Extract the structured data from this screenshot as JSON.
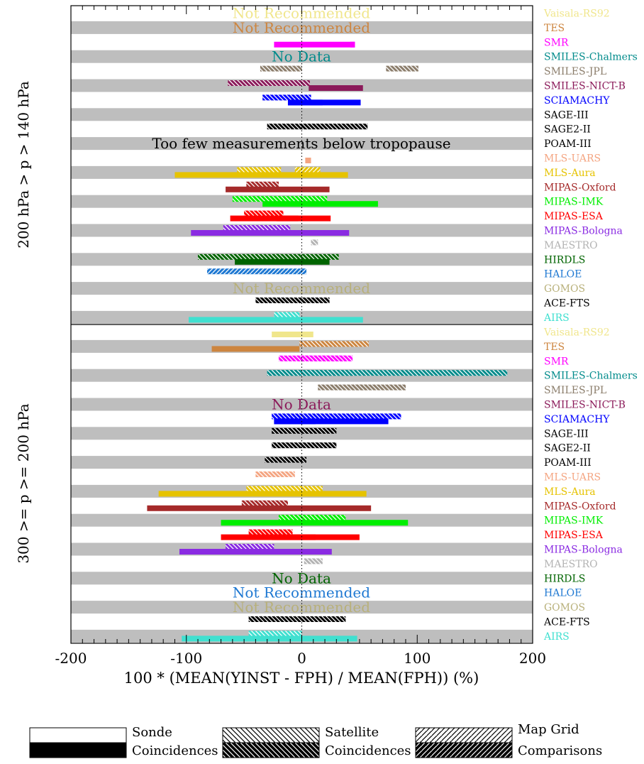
{
  "chart_data": {
    "type": "bar",
    "xlabel": "100 * (MEAN(YINST - FPH) / MEAN(FPH)) (%)",
    "xlim": [
      -200,
      200
    ],
    "x_ticks": [
      "-200",
      "-100",
      "0",
      "100",
      "200"
    ],
    "instruments": [
      {
        "name": "Vaisala-RS92",
        "color": "#f0e68c"
      },
      {
        "name": "TES",
        "color": "#cd853f"
      },
      {
        "name": "SMR",
        "color": "#ff00ff"
      },
      {
        "name": "SMILES-Chalmers",
        "color": "#008b8b"
      },
      {
        "name": "SMILES-JPL",
        "color": "#8b7d6b"
      },
      {
        "name": "SMILES-NICT-B",
        "color": "#8b1a5a"
      },
      {
        "name": "SCIAMACHY",
        "color": "#0000ff"
      },
      {
        "name": "SAGE-III",
        "color": "#000000"
      },
      {
        "name": "SAGE2-II",
        "color": "#000000"
      },
      {
        "name": "POAM-III",
        "color": "#000000"
      },
      {
        "name": "MLS-UARS",
        "color": "#f4a582"
      },
      {
        "name": "MLS-Aura",
        "color": "#e6c300"
      },
      {
        "name": "MIPAS-Oxford",
        "color": "#a52a2a"
      },
      {
        "name": "MIPAS-IMK",
        "color": "#00ee00"
      },
      {
        "name": "MIPAS-ESA",
        "color": "#ff0000"
      },
      {
        "name": "MIPAS-Bologna",
        "color": "#8a2be2"
      },
      {
        "name": "MAESTRO",
        "color": "#b3b3b3"
      },
      {
        "name": "HIRDLS",
        "color": "#006400"
      },
      {
        "name": "HALOE",
        "color": "#1e78d2"
      },
      {
        "name": "GOMOS",
        "color": "#b8b07a"
      },
      {
        "name": "ACE-FTS",
        "color": "#000000"
      },
      {
        "name": "AIRS",
        "color": "#40e0d0"
      }
    ],
    "panels": [
      {
        "label": "200 hPa  > p > 140 hPa",
        "notes": [
          {
            "text": "Not Recommended",
            "row": 0,
            "color": "#f0e68c"
          },
          {
            "text": "Not Recommended",
            "row": 1,
            "color": "#cd853f"
          },
          {
            "text": "No Data",
            "row": 3,
            "color": "#008b8b"
          },
          {
            "text": "Too few measurements below tropopause",
            "row": 9,
            "color": "#000000"
          },
          {
            "text": "Not Recommended",
            "row": 19,
            "color": "#b8b07a"
          }
        ],
        "bars": [
          {
            "row": 2,
            "style": "solid",
            "range": [
              42,
              46
            ]
          },
          {
            "row": 2,
            "style": "solid",
            "range": [
              -24,
              46
            ]
          },
          {
            "row": 4,
            "style": "sat",
            "range": [
              73,
              101
            ]
          },
          {
            "row": 4,
            "style": "sat",
            "range": [
              -36,
              0
            ]
          },
          {
            "row": 5,
            "style": "solid",
            "range": [
              6,
              53
            ]
          },
          {
            "row": 5,
            "style": "sat",
            "range": [
              -64,
              7
            ]
          },
          {
            "row": 6,
            "style": "solid",
            "range": [
              -12,
              18
            ]
          },
          {
            "row": 6,
            "style": "sat",
            "range": [
              -34,
              8
            ]
          },
          {
            "row": 6,
            "style": "solid",
            "range": [
              -12,
              51
            ]
          },
          {
            "row": 8,
            "style": "sat",
            "range": [
              -30,
              57
            ]
          },
          {
            "row": 10,
            "style": "solid",
            "range": [
              3,
              8
            ]
          },
          {
            "row": 11,
            "style": "map",
            "range": [
              -6,
              16
            ]
          },
          {
            "row": 11,
            "style": "sat",
            "range": [
              -56,
              -18
            ]
          },
          {
            "row": 11,
            "style": "solid",
            "range": [
              -110,
              40
            ]
          },
          {
            "row": 12,
            "style": "sat",
            "range": [
              -48,
              -20
            ]
          },
          {
            "row": 12,
            "style": "solid",
            "range": [
              -66,
              24
            ]
          },
          {
            "row": 13,
            "style": "sat",
            "range": [
              -6,
              4
            ]
          },
          {
            "row": 13,
            "style": "sat",
            "range": [
              -60,
              22
            ]
          },
          {
            "row": 13,
            "style": "solid",
            "range": [
              -34,
              66
            ]
          },
          {
            "row": 14,
            "style": "sat",
            "range": [
              -50,
              -16
            ]
          },
          {
            "row": 14,
            "style": "solid",
            "range": [
              -22,
              -3
            ]
          },
          {
            "row": 14,
            "style": "solid",
            "range": [
              -62,
              25
            ]
          },
          {
            "row": 15,
            "style": "sat",
            "range": [
              -38,
              -10
            ]
          },
          {
            "row": 15,
            "style": "sat",
            "range": [
              -68,
              -38
            ]
          },
          {
            "row": 15,
            "style": "solid",
            "range": [
              -96,
              41
            ]
          },
          {
            "row": 16,
            "style": "sat",
            "range": [
              8,
              14
            ]
          },
          {
            "row": 17,
            "style": "sat",
            "range": [
              -24,
              32
            ]
          },
          {
            "row": 17,
            "style": "sat",
            "range": [
              -90,
              -18
            ]
          },
          {
            "row": 17,
            "style": "solid",
            "range": [
              -58,
              24
            ]
          },
          {
            "row": 18,
            "style": "map",
            "range": [
              -82,
              4
            ]
          },
          {
            "row": 20,
            "style": "sat",
            "range": [
              -40,
              24
            ]
          },
          {
            "row": 21,
            "style": "sat",
            "range": [
              -24,
              -2
            ]
          },
          {
            "row": 21,
            "style": "solid",
            "range": [
              -98,
              53
            ]
          }
        ]
      },
      {
        "label": "300 >= p >= 200 hPa",
        "notes": [
          {
            "text": "No Data",
            "row": 5,
            "color": "#8b1a5a"
          },
          {
            "text": "No Data",
            "row": 17,
            "color": "#006400"
          },
          {
            "text": "Not Recommended",
            "row": 18,
            "color": "#1e78d2"
          },
          {
            "text": "Not Recommended",
            "row": 19,
            "color": "#b8b07a"
          }
        ],
        "bars": [
          {
            "row": 0,
            "style": "solid",
            "range": [
              -26,
              10
            ]
          },
          {
            "row": 1,
            "style": "sat",
            "range": [
              -2,
              34
            ]
          },
          {
            "row": 1,
            "style": "sat",
            "range": [
              0,
              58
            ]
          },
          {
            "row": 1,
            "style": "solid",
            "range": [
              -78,
              -2
            ]
          },
          {
            "row": 2,
            "style": "sat",
            "range": [
              -4,
              38
            ]
          },
          {
            "row": 2,
            "style": "sat",
            "range": [
              -20,
              44
            ]
          },
          {
            "row": 3,
            "style": "sat",
            "range": [
              -30,
              44
            ]
          },
          {
            "row": 3,
            "style": "sat",
            "range": [
              -22,
              178
            ]
          },
          {
            "row": 4,
            "style": "sat",
            "range": [
              44,
              90
            ]
          },
          {
            "row": 4,
            "style": "sat",
            "range": [
              14,
              56
            ]
          },
          {
            "row": 6,
            "style": "sat",
            "range": [
              -26,
              86
            ]
          },
          {
            "row": 6,
            "style": "solid",
            "range": [
              -24,
              12
            ]
          },
          {
            "row": 6,
            "style": "solid",
            "range": [
              -24,
              75
            ]
          },
          {
            "row": 7,
            "style": "sat",
            "range": [
              -26,
              30
            ]
          },
          {
            "row": 8,
            "style": "sat",
            "range": [
              -26,
              30
            ]
          },
          {
            "row": 9,
            "style": "sat",
            "range": [
              -32,
              4
            ]
          },
          {
            "row": 10,
            "style": "sat",
            "range": [
              -40,
              -6
            ]
          },
          {
            "row": 11,
            "style": "sat",
            "range": [
              -24,
              18
            ]
          },
          {
            "row": 11,
            "style": "sat",
            "range": [
              -48,
              -8
            ]
          },
          {
            "row": 11,
            "style": "solid",
            "range": [
              -124,
              56
            ]
          },
          {
            "row": 12,
            "style": "sat",
            "range": [
              -52,
              -12
            ]
          },
          {
            "row": 12,
            "style": "solid",
            "range": [
              -134,
              60
            ]
          },
          {
            "row": 13,
            "style": "sat",
            "range": [
              -20,
              38
            ]
          },
          {
            "row": 13,
            "style": "sat",
            "range": [
              -18,
              22
            ]
          },
          {
            "row": 13,
            "style": "solid",
            "range": [
              -70,
              92
            ]
          },
          {
            "row": 14,
            "style": "sat",
            "range": [
              -46,
              -8
            ]
          },
          {
            "row": 14,
            "style": "solid",
            "range": [
              -26,
              12
            ]
          },
          {
            "row": 14,
            "style": "solid",
            "range": [
              -70,
              50
            ]
          },
          {
            "row": 15,
            "style": "sat",
            "range": [
              -60,
              -24
            ]
          },
          {
            "row": 15,
            "style": "sat",
            "range": [
              -66,
              -30
            ]
          },
          {
            "row": 15,
            "style": "solid",
            "range": [
              -106,
              26
            ]
          },
          {
            "row": 16,
            "style": "sat",
            "range": [
              2,
              18
            ]
          },
          {
            "row": 20,
            "style": "sat",
            "range": [
              -46,
              38
            ]
          },
          {
            "row": 21,
            "style": "sat",
            "range": [
              -46,
              0
            ]
          },
          {
            "row": 21,
            "style": "solid",
            "range": [
              -104,
              48
            ]
          }
        ]
      }
    ],
    "legend": [
      {
        "style": "solid",
        "line1": "Sonde",
        "line2": "Coincidences"
      },
      {
        "style": "sat",
        "line1": "Satellite",
        "line2": "Coincidences"
      },
      {
        "style": "map",
        "line1": "Map Grid",
        "line2": "Comparisons"
      }
    ]
  }
}
